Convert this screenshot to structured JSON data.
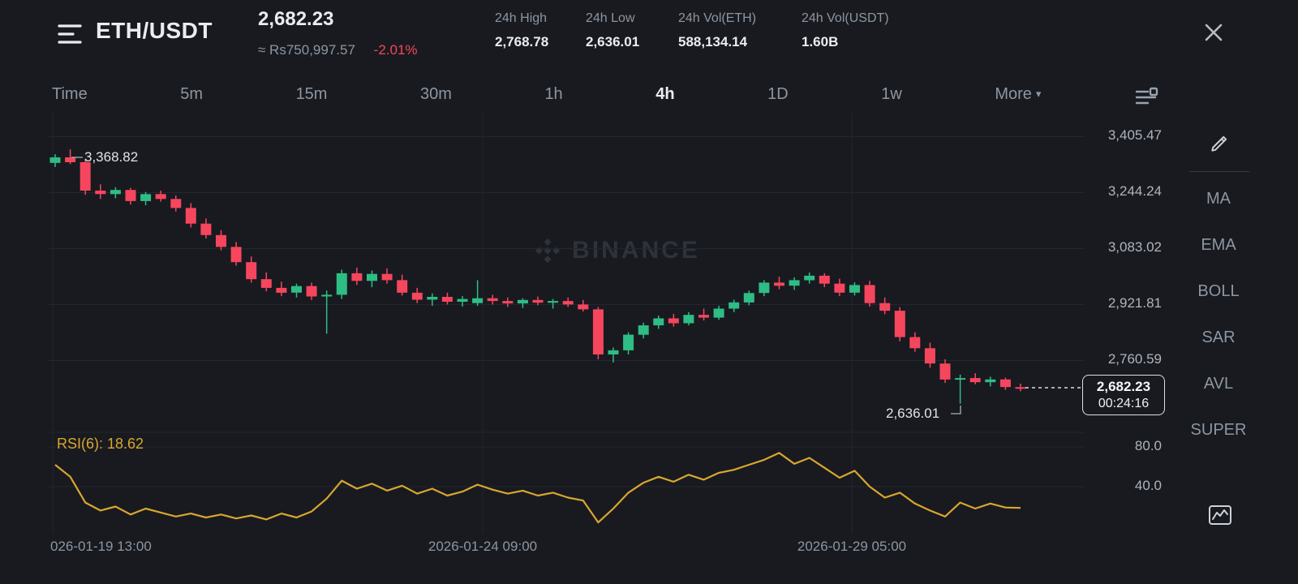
{
  "colors": {
    "up": "#2ebd85",
    "down": "#f6465d",
    "rsi_line": "#d9a62e",
    "change_negative": "#f6465d",
    "background": "#181a20"
  },
  "header": {
    "pair": "ETH/USDT",
    "last_price": "2,682.23",
    "fiat_approx": "≈ Rs750,997.57",
    "change_pct": "-2.01%",
    "stats": [
      {
        "label": "24h High",
        "value": "2,768.78"
      },
      {
        "label": "24h Low",
        "value": "2,636.01"
      },
      {
        "label": "24h Vol(ETH)",
        "value": "588,134.14"
      },
      {
        "label": "24h Vol(USDT)",
        "value": "1.60B"
      }
    ]
  },
  "toolbar": {
    "intervals": [
      "Time",
      "5m",
      "15m",
      "30m",
      "1h",
      "4h",
      "1D",
      "1w"
    ],
    "active": "4h",
    "more_label": "More"
  },
  "chart": {
    "watermark": "BINANCE",
    "y_axis": [
      "3,405.47",
      "3,244.24",
      "3,083.02",
      "2,921.81",
      "2,760.59"
    ],
    "rsi_axis": [
      "80.0",
      "40.0"
    ],
    "x_axis": [
      "026-01-19 13:00",
      "2026-01-24 09:00",
      "2026-01-29 05:00"
    ],
    "high_label": "3,368.82",
    "low_label": "2,636.01",
    "rsi_title": "RSI(6): 18.62",
    "price_badge": {
      "price": "2,682.23",
      "countdown": "00:24:16"
    }
  },
  "sidebar": {
    "items": [
      "MA",
      "EMA",
      "BOLL",
      "SAR",
      "AVL",
      "SUPER"
    ]
  },
  "chart_data": {
    "type": "candlestick",
    "interval": "4h",
    "price_axis_ticks": [
      3405.47,
      3244.24,
      3083.02,
      2921.81,
      2760.59
    ],
    "time_axis_ticks": [
      "026-01-19 13:00",
      "2026-01-24 09:00",
      "2026-01-29 05:00"
    ],
    "annotations": {
      "high": 3368.82,
      "low": 2636.01,
      "last_price": 2682.23,
      "countdown": "00:24:16"
    },
    "candles": [
      [
        3330,
        3355,
        3318,
        3346
      ],
      [
        3346,
        3368.82,
        3326,
        3332
      ],
      [
        3332,
        3340,
        3238,
        3250
      ],
      [
        3250,
        3268,
        3226,
        3240
      ],
      [
        3240,
        3260,
        3228,
        3252
      ],
      [
        3252,
        3258,
        3210,
        3220
      ],
      [
        3220,
        3246,
        3208,
        3240
      ],
      [
        3240,
        3250,
        3218,
        3226
      ],
      [
        3226,
        3236,
        3190,
        3200
      ],
      [
        3200,
        3214,
        3144,
        3155
      ],
      [
        3155,
        3170,
        3112,
        3122
      ],
      [
        3122,
        3136,
        3078,
        3088
      ],
      [
        3088,
        3102,
        3034,
        3044
      ],
      [
        3044,
        3060,
        2985,
        2995
      ],
      [
        2995,
        3014,
        2960,
        2970
      ],
      [
        2970,
        2988,
        2946,
        2956
      ],
      [
        2956,
        2982,
        2942,
        2975
      ],
      [
        2975,
        2985,
        2935,
        2945
      ],
      [
        2945,
        2962,
        2838,
        2950
      ],
      [
        2950,
        3022,
        2938,
        3012
      ],
      [
        3012,
        3028,
        2978,
        2990
      ],
      [
        2990,
        3020,
        2972,
        3010
      ],
      [
        3010,
        3026,
        2982,
        2992
      ],
      [
        2992,
        3008,
        2948,
        2956
      ],
      [
        2956,
        2970,
        2926,
        2936
      ],
      [
        2936,
        2954,
        2918,
        2944
      ],
      [
        2944,
        2956,
        2922,
        2930
      ],
      [
        2930,
        2946,
        2916,
        2938
      ],
      [
        2926,
        2992,
        2918,
        2940
      ],
      [
        2940,
        2950,
        2922,
        2932
      ],
      [
        2932,
        2942,
        2915,
        2925
      ],
      [
        2925,
        2940,
        2912,
        2935
      ],
      [
        2935,
        2945,
        2920,
        2927
      ],
      [
        2927,
        2938,
        2910,
        2932
      ],
      [
        2932,
        2942,
        2915,
        2922
      ],
      [
        2922,
        2935,
        2902,
        2908
      ],
      [
        2908,
        2915,
        2764,
        2778
      ],
      [
        2778,
        2798,
        2755,
        2790
      ],
      [
        2790,
        2842,
        2778,
        2835
      ],
      [
        2835,
        2870,
        2824,
        2862
      ],
      [
        2862,
        2890,
        2852,
        2882
      ],
      [
        2882,
        2895,
        2858,
        2868
      ],
      [
        2868,
        2900,
        2862,
        2892
      ],
      [
        2892,
        2910,
        2876,
        2884
      ],
      [
        2884,
        2918,
        2878,
        2910
      ],
      [
        2910,
        2936,
        2900,
        2928
      ],
      [
        2928,
        2962,
        2920,
        2955
      ],
      [
        2955,
        2992,
        2946,
        2985
      ],
      [
        2985,
        3002,
        2966,
        2976
      ],
      [
        2976,
        3000,
        2964,
        2992
      ],
      [
        2992,
        3014,
        2982,
        3005
      ],
      [
        3005,
        3012,
        2972,
        2982
      ],
      [
        2982,
        2996,
        2946,
        2956
      ],
      [
        2956,
        2986,
        2948,
        2978
      ],
      [
        2978,
        2990,
        2916,
        2926
      ],
      [
        2926,
        2942,
        2894,
        2904
      ],
      [
        2904,
        2914,
        2816,
        2828
      ],
      [
        2828,
        2842,
        2786,
        2796
      ],
      [
        2796,
        2812,
        2740,
        2752
      ],
      [
        2752,
        2764,
        2696,
        2706
      ],
      [
        2706,
        2720,
        2636.01,
        2710
      ],
      [
        2710,
        2724,
        2692,
        2698
      ],
      [
        2698,
        2714,
        2686,
        2706
      ],
      [
        2706,
        2711,
        2676,
        2684
      ],
      [
        2684,
        2694,
        2672,
        2682.23
      ]
    ],
    "rsi": {
      "period": 6,
      "current": 18.62,
      "ticks": [
        80,
        40
      ],
      "values": [
        62,
        50,
        24,
        16,
        20,
        12,
        18,
        14,
        10,
        13,
        9,
        12,
        8,
        11,
        7,
        13,
        9,
        15,
        28,
        46,
        38,
        43,
        36,
        41,
        33,
        38,
        31,
        35,
        42,
        37,
        33,
        36,
        31,
        34,
        29,
        26,
        4,
        18,
        34,
        44,
        50,
        45,
        52,
        47,
        54,
        57,
        62,
        67,
        74,
        63,
        69,
        59,
        49,
        56,
        40,
        29,
        34,
        23,
        16,
        10,
        24,
        18,
        23,
        19,
        18.62
      ]
    }
  }
}
